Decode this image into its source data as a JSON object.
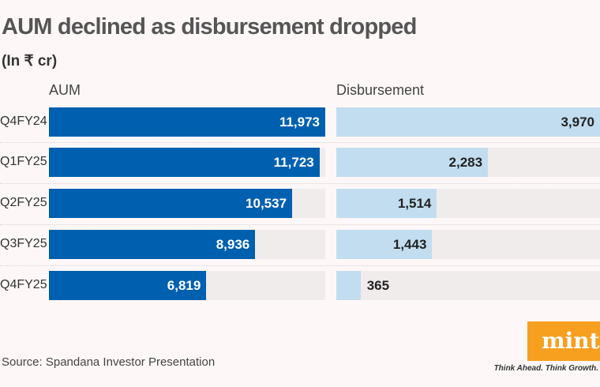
{
  "chart_data": {
    "type": "bar",
    "orientation": "horizontal",
    "title": "AUM declined as disbursement dropped",
    "subtitle": "(In ₹ cr)",
    "categories": [
      "Q4FY24",
      "Q1FY25",
      "Q2FY25",
      "Q3FY25",
      "Q4FY25"
    ],
    "series": [
      {
        "name": "AUM",
        "values": [
          11973,
          11723,
          10537,
          8936,
          6819
        ],
        "labels": [
          "11,973",
          "11,723",
          "10,537",
          "8,936",
          "6,819"
        ],
        "color": "#0060b0",
        "label_color": "#ffffff"
      },
      {
        "name": "Disbursement",
        "values": [
          3970,
          2283,
          1514,
          1443,
          365
        ],
        "labels": [
          "3,970",
          "2,283",
          "1,514",
          "1,443",
          "365"
        ],
        "color": "#c2ddef",
        "label_color": "#222222"
      }
    ],
    "track_color": "#f0ecec",
    "grid": false,
    "legend": "none"
  },
  "source": "Source: Spandana Investor Presentation",
  "logo": {
    "text": "mint",
    "tagline": "Think Ahead. Think Growth.",
    "color": "#f7a020"
  }
}
